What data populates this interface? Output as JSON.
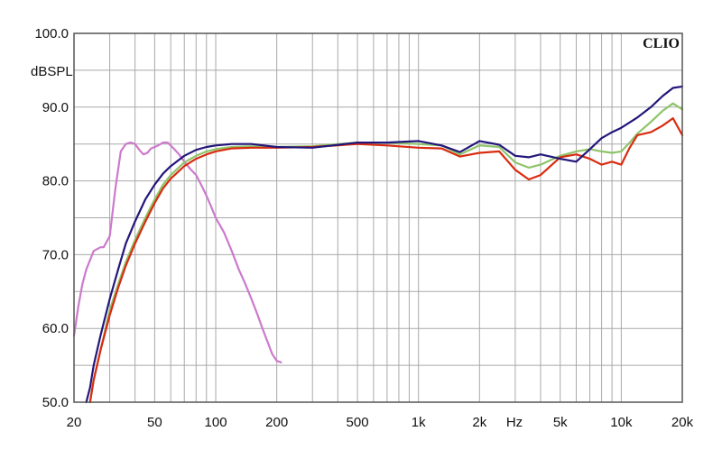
{
  "chart_data": {
    "type": "line",
    "brand": "CLIO",
    "ylabel": "dBSPL",
    "xlabel": "Hz",
    "x_scale": "log",
    "xlim": [
      20,
      20000
    ],
    "ylim": [
      50,
      100
    ],
    "grid": true,
    "y_ticks": [
      {
        "value": 100,
        "label": "100.0"
      },
      {
        "value": 90,
        "label": "90.0"
      },
      {
        "value": 80,
        "label": "80.0"
      },
      {
        "value": 70,
        "label": "70.0"
      },
      {
        "value": 60,
        "label": "60.0"
      },
      {
        "value": 50,
        "label": "50.0"
      }
    ],
    "x_ticks": [
      {
        "value": 20,
        "label": "20"
      },
      {
        "value": 50,
        "label": "50"
      },
      {
        "value": 100,
        "label": "100"
      },
      {
        "value": 200,
        "label": "200"
      },
      {
        "value": 500,
        "label": "500"
      },
      {
        "value": 1000,
        "label": "1k"
      },
      {
        "value": 2000,
        "label": "2k"
      },
      {
        "value": 5000,
        "label": "5k"
      },
      {
        "value": 10000,
        "label": "10k"
      },
      {
        "value": 20000,
        "label": "20k"
      }
    ],
    "series": [
      {
        "color": "#cc7acc",
        "x": [
          20,
          21,
          22,
          23,
          25,
          27,
          28,
          30,
          32,
          34,
          36,
          38,
          40,
          42,
          44,
          46,
          48,
          50,
          52,
          55,
          58,
          62,
          66,
          70,
          75,
          80,
          85,
          90,
          95,
          100,
          110,
          120,
          130,
          140,
          150,
          160,
          170,
          180,
          190,
          200,
          210
        ],
        "y": [
          59,
          63,
          66,
          68,
          70.5,
          71,
          71,
          72.5,
          79,
          84,
          85,
          85.2,
          85,
          84.2,
          83.6,
          83.8,
          84.4,
          84.6,
          84.8,
          85.2,
          85.2,
          84.4,
          83.6,
          82.6,
          81.6,
          80.8,
          79.4,
          78,
          76.5,
          75,
          73,
          70.5,
          68,
          66,
          64,
          62,
          60,
          58.2,
          56.5,
          55.6,
          55.4
        ]
      },
      {
        "color": "#8fc46a",
        "x": [
          24,
          25,
          27,
          30,
          33,
          36,
          40,
          45,
          50,
          55,
          60,
          70,
          80,
          90,
          100,
          120,
          150,
          200,
          300,
          500,
          700,
          1000,
          1300,
          1600,
          2000,
          2500,
          3000,
          3500,
          4000,
          5000,
          6000,
          7000,
          8000,
          9000,
          10000,
          11000,
          12000,
          14000,
          16000,
          18000,
          20000
        ],
        "y": [
          50,
          53,
          57,
          62.5,
          66,
          69,
          72,
          75,
          77.5,
          79.5,
          80.8,
          82.5,
          83.4,
          84,
          84.3,
          84.6,
          84.7,
          84.6,
          84.7,
          85.2,
          85.2,
          85,
          84.8,
          83.6,
          84.8,
          84.6,
          82.5,
          81.8,
          82.2,
          83.4,
          84,
          84.3,
          84,
          83.8,
          84,
          85.2,
          86.4,
          88,
          89.5,
          90.5,
          89.7
        ]
      },
      {
        "color": "#d92b10",
        "x": [
          24,
          25,
          27,
          30,
          33,
          36,
          40,
          45,
          50,
          55,
          60,
          70,
          80,
          90,
          100,
          120,
          150,
          200,
          300,
          500,
          700,
          1000,
          1300,
          1600,
          2000,
          2500,
          3000,
          3500,
          4000,
          5000,
          6000,
          7000,
          8000,
          9000,
          10000,
          11000,
          12000,
          14000,
          16000,
          18000,
          20000
        ],
        "y": [
          50,
          53,
          57,
          61.8,
          65.5,
          68.5,
          71.5,
          74.5,
          77,
          79,
          80.3,
          82,
          83,
          83.6,
          84,
          84.4,
          84.5,
          84.5,
          84.6,
          85,
          84.8,
          84.5,
          84.4,
          83.3,
          83.8,
          84,
          81.5,
          80.2,
          80.8,
          83.2,
          83.6,
          83,
          82.2,
          82.6,
          82.2,
          84.5,
          86.2,
          86.6,
          87.5,
          88.5,
          86.2
        ]
      },
      {
        "color": "#22177a",
        "x": [
          23,
          24,
          25,
          27,
          30,
          33,
          36,
          40,
          45,
          50,
          55,
          60,
          70,
          80,
          90,
          100,
          120,
          150,
          200,
          300,
          500,
          700,
          1000,
          1300,
          1600,
          2000,
          2500,
          3000,
          3500,
          4000,
          5000,
          6000,
          7000,
          8000,
          9000,
          10000,
          12000,
          14000,
          16000,
          18000,
          20000
        ],
        "y": [
          50,
          52,
          55,
          59,
          64,
          68,
          71.5,
          74.5,
          77.5,
          79.5,
          81,
          82,
          83.4,
          84.2,
          84.6,
          84.8,
          85,
          85,
          84.6,
          84.5,
          85.2,
          85.2,
          85.4,
          84.8,
          83.9,
          85.4,
          84.9,
          83.4,
          83.2,
          83.6,
          83,
          82.6,
          84.3,
          85.8,
          86.6,
          87.2,
          88.6,
          90,
          91.5,
          92.6,
          92.8
        ]
      }
    ]
  }
}
